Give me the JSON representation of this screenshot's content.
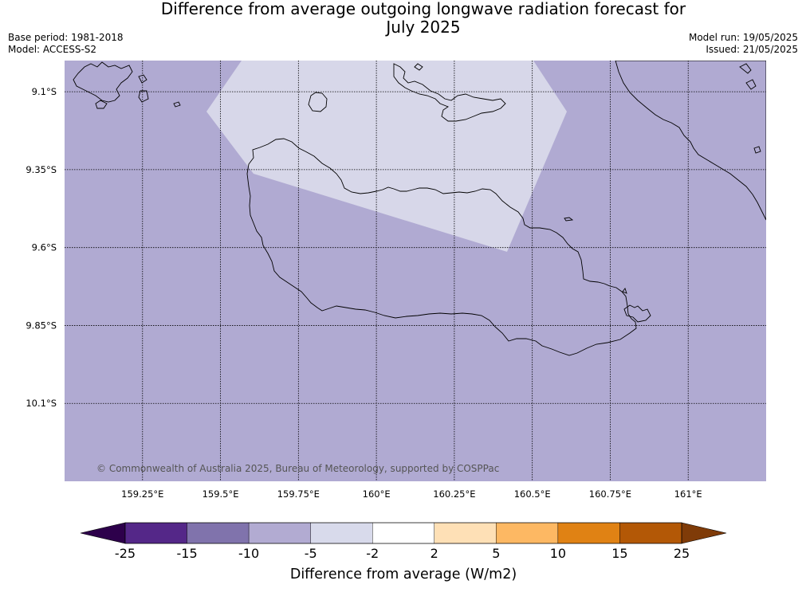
{
  "title": "Difference from average outgoing longwave radiation forecast for July 2025",
  "title_lines": [
    "Difference from average outgoing longwave radiation forecast for",
    "July 2025"
  ],
  "meta": {
    "base_period": "Base period: 1981-2018",
    "model": "Model: ACCESS-S2",
    "model_run": "Model run: 19/05/2025",
    "issued": "Issued: 21/05/2025"
  },
  "map": {
    "copyright": "© Commonwealth of Australia 2025, Bureau of Meteorology, supported by COSPPac",
    "lon_range": [
      159.0,
      161.25
    ],
    "lat_range": [
      -10.35,
      -9.0
    ],
    "lon_ticks": [
      {
        "value": 159.25,
        "label": "159.25°E"
      },
      {
        "value": 159.5,
        "label": "159.5°E"
      },
      {
        "value": 159.75,
        "label": "159.75°E"
      },
      {
        "value": 160.0,
        "label": "160°E"
      },
      {
        "value": 160.25,
        "label": "160.25°E"
      },
      {
        "value": 160.5,
        "label": "160.5°E"
      },
      {
        "value": 160.75,
        "label": "160.75°E"
      },
      {
        "value": 161.0,
        "label": "161°E"
      }
    ],
    "lat_ticks": [
      {
        "value": -9.1,
        "label": "9.1°S"
      },
      {
        "value": -9.35,
        "label": "9.35°S"
      },
      {
        "value": -9.6,
        "label": "9.6°S"
      },
      {
        "value": -9.85,
        "label": "9.85°S"
      },
      {
        "value": -10.1,
        "label": "10.1°S"
      }
    ],
    "background_category": "-10 to -5",
    "background_color": "#b0aad2",
    "region_category": "-5 to -2",
    "region_color": "#d7d7e9",
    "grid": "dotted",
    "coastline_color": "#000000"
  },
  "colorbar": {
    "title": "Difference from average (W/m2)",
    "under_color": "#2d004b",
    "over_color": "#7f3b08",
    "bins": [
      {
        "from": "-25",
        "to": "-15",
        "color": "#542788"
      },
      {
        "from": "-15",
        "to": "-10",
        "color": "#8073ac"
      },
      {
        "from": "-10",
        "to": "-5",
        "color": "#b2abd2"
      },
      {
        "from": "-5",
        "to": "-2",
        "color": "#d8daeb"
      },
      {
        "from": "-2",
        "to": "2",
        "color": "#ffffff"
      },
      {
        "from": "2",
        "to": "5",
        "color": "#fee0b6"
      },
      {
        "from": "5",
        "to": "10",
        "color": "#fdb863"
      },
      {
        "from": "10",
        "to": "15",
        "color": "#e08214"
      },
      {
        "from": "15",
        "to": "25",
        "color": "#b35806"
      }
    ],
    "tick_labels": [
      "-25",
      "-15",
      "-10",
      "-5",
      "-2",
      "2",
      "5",
      "10",
      "15",
      "25"
    ]
  }
}
